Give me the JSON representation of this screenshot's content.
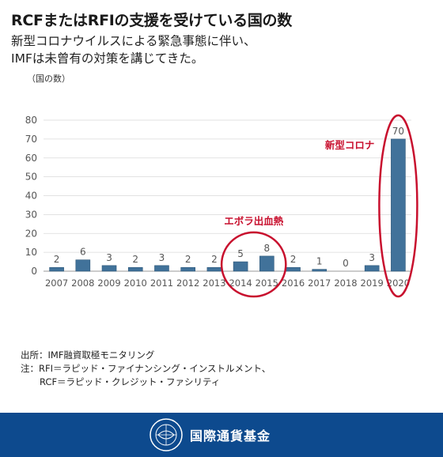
{
  "title": "RCFまたはRFIの支援を受けている国の数",
  "subtitle_lines": [
    "新型コロナウイルスによる緊急事態に伴い、",
    "IMFは未曾有の対策を講じてきた。"
  ],
  "unit_label": "（国の数）",
  "chart_data": {
    "type": "bar",
    "categories": [
      "2007",
      "2008",
      "2009",
      "2010",
      "2011",
      "2012",
      "2013",
      "2014",
      "2015",
      "2016",
      "2017",
      "2018",
      "2019",
      "2020"
    ],
    "values": [
      2,
      6,
      3,
      2,
      3,
      2,
      2,
      5,
      8,
      2,
      1,
      0,
      3,
      70
    ],
    "ylim": [
      0,
      80
    ],
    "yticks": [
      0,
      10,
      20,
      30,
      40,
      50,
      60,
      70,
      80
    ],
    "bar_color": "#41729a",
    "grid": true,
    "annotations": [
      {
        "label": "エボラ出血熱",
        "categories": [
          "2014",
          "2015"
        ]
      },
      {
        "label": "新型コロナ",
        "categories": [
          "2020"
        ]
      }
    ],
    "annotation_color": "#c8102e"
  },
  "notes": {
    "source": "出所：IMF融資取極モニタリング",
    "note_1": "注：RFI＝ラピッド・ファイナンシング・インストルメント、",
    "note_2": "RCF＝ラピッド・クレジット・ファシリティ"
  },
  "footer": {
    "org_name": "国際通貨基金",
    "background": "#0d4a8e"
  }
}
